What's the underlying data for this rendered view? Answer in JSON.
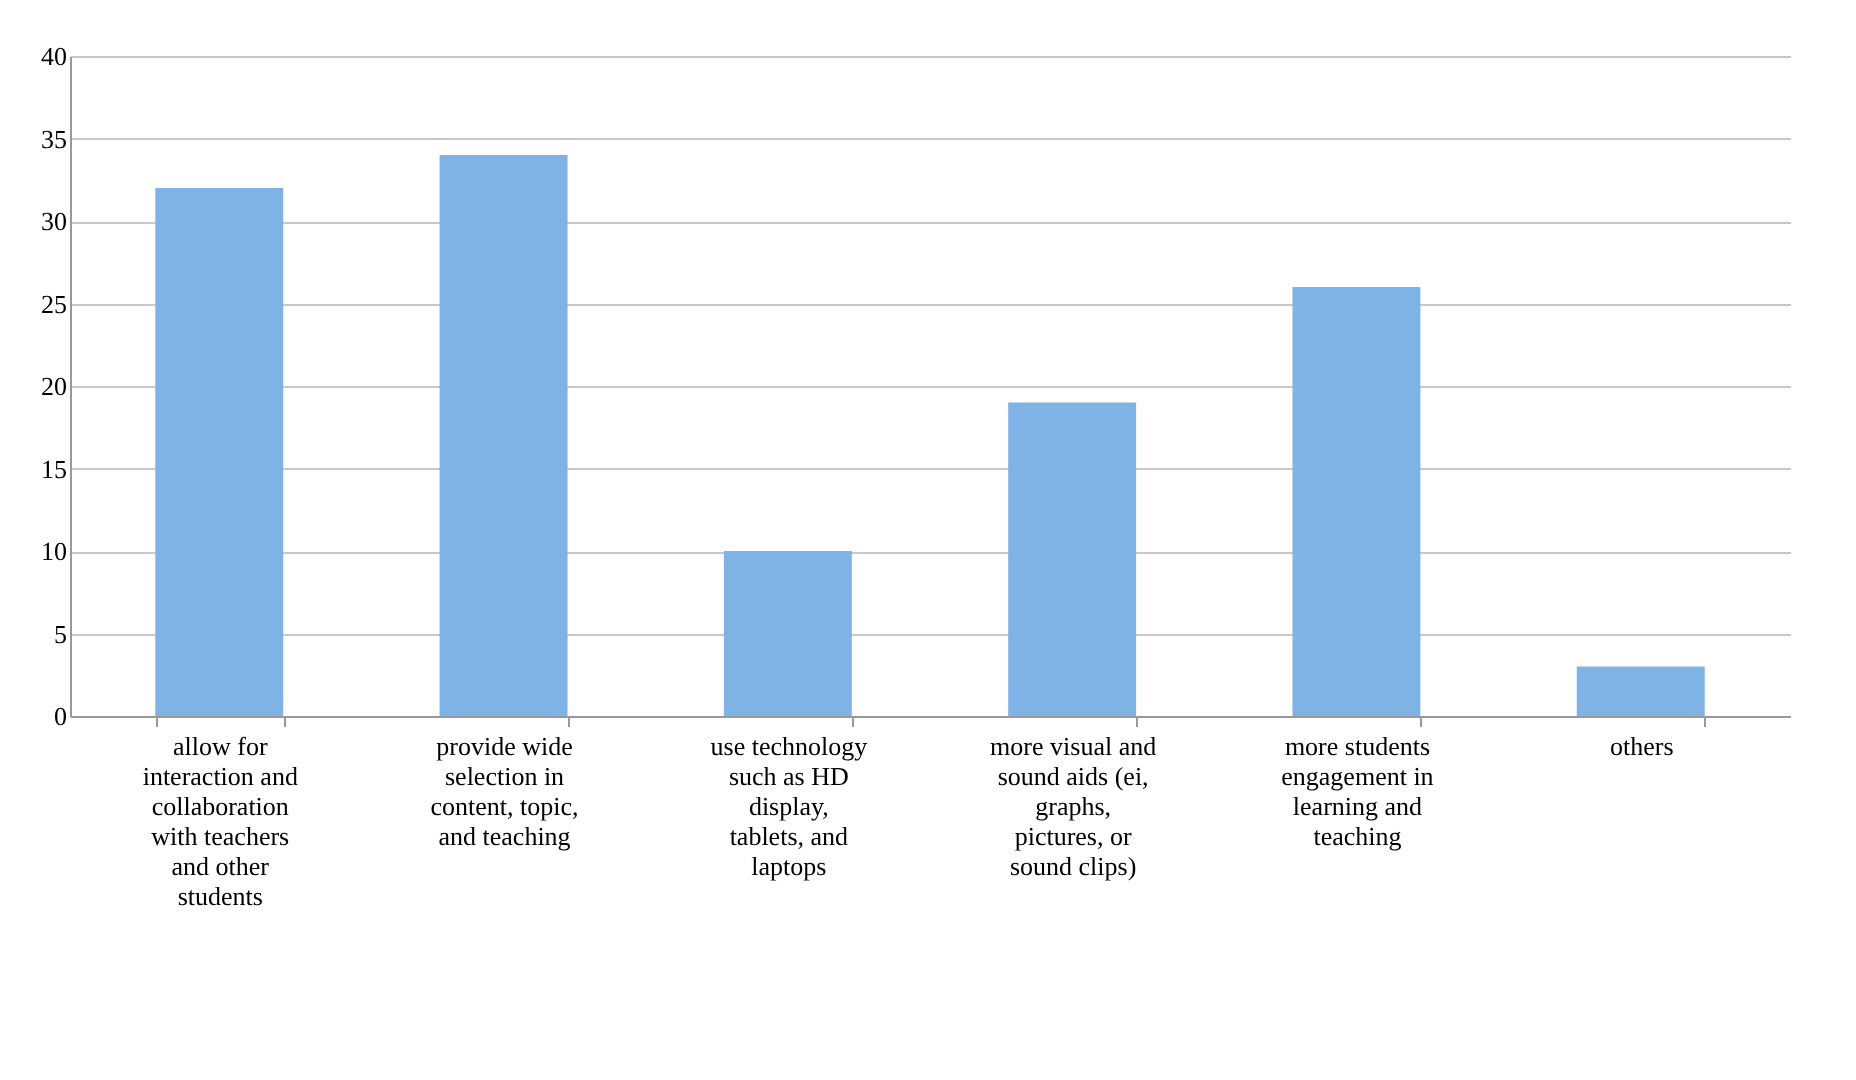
{
  "chart_data": {
    "type": "bar",
    "categories": [
      "allow for interaction and collaboration with teachers and other students",
      "provide wide selection in content, topic, and teaching",
      "use technology such as HD display, tablets, and laptops",
      "more visual and sound aids (ei, graphs, pictures, or sound clips)",
      "more students engagement in learning and teaching",
      "others"
    ],
    "values": [
      32,
      34,
      10,
      19,
      26,
      3
    ],
    "color": "#7fb3e6",
    "ylim": [
      0,
      40
    ],
    "yticks": [
      0,
      5,
      10,
      15,
      20,
      25,
      30,
      35,
      40
    ],
    "grid": "y"
  }
}
